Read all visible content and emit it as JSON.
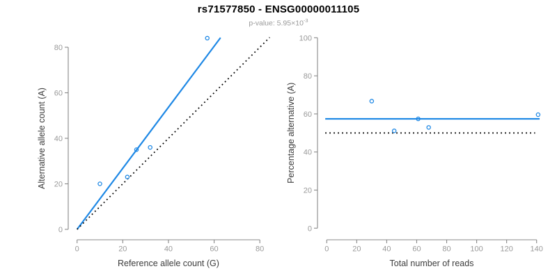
{
  "header": {
    "title": "rs71577850 - ENSG00000011105",
    "subtitle_prefix": "p-value: 5.95×10",
    "subtitle_exponent": "-3"
  },
  "colors": {
    "accent_blue": "#1E88E5",
    "reference_black": "#000000",
    "axis_line": "#888888",
    "tick_label": "#999999",
    "axis_title": "#3C3C3C",
    "title": "#000000",
    "subtitle": "#999999"
  },
  "chart_data": [
    {
      "type": "scatter",
      "name": "allele-counts",
      "xlabel": "Reference allele count (G)",
      "ylabel": "Alternative allele count (A)",
      "xlim": [
        0,
        80
      ],
      "ylim": [
        0,
        80
      ],
      "xticks": [
        0,
        20,
        40,
        60,
        80
      ],
      "yticks": [
        0,
        20,
        40,
        60,
        80
      ],
      "grid": false,
      "legend": null,
      "points": [
        [
          10,
          20
        ],
        [
          22,
          23
        ],
        [
          26,
          35
        ],
        [
          32,
          36
        ],
        [
          57,
          84
        ]
      ],
      "lines": [
        {
          "name": "fit-line",
          "style": "solid",
          "color": "blue",
          "from": [
            0,
            0
          ],
          "to": [
            62.8,
            84.2
          ]
        },
        {
          "name": "identity-line",
          "style": "dotted",
          "color": "black",
          "from": [
            0,
            0
          ],
          "to": [
            84.3,
            84.3
          ]
        }
      ]
    },
    {
      "type": "scatter",
      "name": "percentage-vs-reads",
      "xlabel": "Total number of reads",
      "ylabel": "Percentage alternative (A)",
      "xlim": [
        0,
        140
      ],
      "ylim": [
        0,
        100
      ],
      "xticks": [
        0,
        20,
        40,
        60,
        80,
        100,
        120,
        140
      ],
      "yticks": [
        0,
        20,
        40,
        60,
        80,
        100
      ],
      "grid": false,
      "legend": null,
      "points": [
        [
          30,
          66.7
        ],
        [
          45,
          51.1
        ],
        [
          61,
          57.4
        ],
        [
          68,
          52.9
        ],
        [
          141,
          59.6
        ]
      ],
      "lines": [
        {
          "name": "fit-line",
          "style": "solid",
          "color": "blue",
          "from": [
            -1,
            57.4
          ],
          "to": [
            142,
            57.4
          ]
        },
        {
          "name": "reference-line",
          "style": "dotted",
          "color": "black",
          "from": [
            -1,
            50
          ],
          "to": [
            139,
            50
          ]
        }
      ]
    }
  ]
}
